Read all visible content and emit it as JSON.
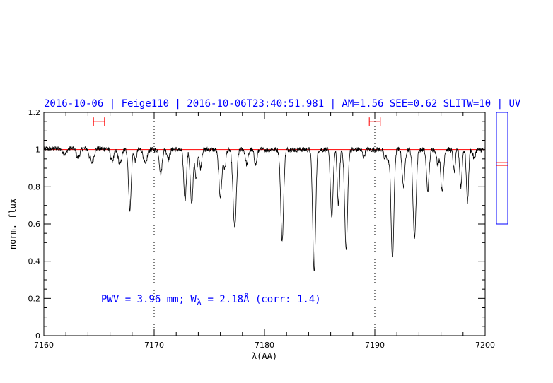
{
  "chart_data": {
    "type": "line",
    "title": "2016-10-06 | Feige110 | 2016-10-06T23:40:51.981 | AM=1.56 SEE=0.62 SLITW=10 | UV",
    "xlabel": "λ(AA)",
    "ylabel": "norm. flux",
    "xlim": [
      7160,
      7200
    ],
    "ylim": [
      0,
      1.2
    ],
    "x_ticks": [
      "7160",
      "7170",
      "7180",
      "7190",
      "7200"
    ],
    "y_ticks": [
      "0",
      "0.2",
      "0.4",
      "0.6",
      "0.8",
      "1",
      "1.2"
    ],
    "reference_line_y": 1.0,
    "vertical_markers_x": [
      7170,
      7190
    ],
    "continuum_windows": [
      [
        7164.5,
        7165.5
      ],
      [
        7189.5,
        7190.5
      ]
    ],
    "continuum_window_y": 1.15,
    "annotation": {
      "prefix": "PWV = 3.96 mm; W",
      "subscript": "λ",
      "suffix": " = 2.18Å (corr: 1.4)"
    },
    "absorption_lines": [
      {
        "x": 7161.9,
        "depth": 0.03,
        "width": 0.15
      },
      {
        "x": 7163.1,
        "depth": 0.05,
        "width": 0.15
      },
      {
        "x": 7164.2,
        "depth": 0.04,
        "width": 0.12
      },
      {
        "x": 7164.4,
        "depth": 0.06,
        "width": 0.15
      },
      {
        "x": 7166.2,
        "depth": 0.06,
        "width": 0.15
      },
      {
        "x": 7166.9,
        "depth": 0.08,
        "width": 0.15
      },
      {
        "x": 7167.8,
        "depth": 0.32,
        "width": 0.12
      },
      {
        "x": 7168.3,
        "depth": 0.06,
        "width": 0.1
      },
      {
        "x": 7169.2,
        "depth": 0.08,
        "width": 0.15
      },
      {
        "x": 7170.6,
        "depth": 0.13,
        "width": 0.12
      },
      {
        "x": 7171.3,
        "depth": 0.05,
        "width": 0.12
      },
      {
        "x": 7172.8,
        "depth": 0.27,
        "width": 0.12
      },
      {
        "x": 7173.4,
        "depth": 0.3,
        "width": 0.12
      },
      {
        "x": 7173.8,
        "depth": 0.16,
        "width": 0.1
      },
      {
        "x": 7174.2,
        "depth": 0.1,
        "width": 0.1
      },
      {
        "x": 7176.0,
        "depth": 0.25,
        "width": 0.14
      },
      {
        "x": 7176.4,
        "depth": 0.1,
        "width": 0.1
      },
      {
        "x": 7177.3,
        "depth": 0.42,
        "width": 0.15
      },
      {
        "x": 7178.4,
        "depth": 0.08,
        "width": 0.12
      },
      {
        "x": 7179.2,
        "depth": 0.08,
        "width": 0.12
      },
      {
        "x": 7181.6,
        "depth": 0.49,
        "width": 0.13
      },
      {
        "x": 7184.5,
        "depth": 0.66,
        "width": 0.13
      },
      {
        "x": 7186.1,
        "depth": 0.36,
        "width": 0.12
      },
      {
        "x": 7186.7,
        "depth": 0.3,
        "width": 0.1
      },
      {
        "x": 7187.4,
        "depth": 0.54,
        "width": 0.13
      },
      {
        "x": 7189.0,
        "depth": 0.04,
        "width": 0.1
      },
      {
        "x": 7190.9,
        "depth": 0.05,
        "width": 0.1
      },
      {
        "x": 7191.2,
        "depth": 0.06,
        "width": 0.1
      },
      {
        "x": 7191.6,
        "depth": 0.59,
        "width": 0.13
      },
      {
        "x": 7192.6,
        "depth": 0.2,
        "width": 0.12
      },
      {
        "x": 7193.6,
        "depth": 0.47,
        "width": 0.14
      },
      {
        "x": 7194.8,
        "depth": 0.22,
        "width": 0.12
      },
      {
        "x": 7195.7,
        "depth": 0.08,
        "width": 0.1
      },
      {
        "x": 7196.1,
        "depth": 0.23,
        "width": 0.12
      },
      {
        "x": 7197.2,
        "depth": 0.12,
        "width": 0.1
      },
      {
        "x": 7197.8,
        "depth": 0.2,
        "width": 0.1
      },
      {
        "x": 7198.4,
        "depth": 0.28,
        "width": 0.1
      },
      {
        "x": 7199.0,
        "depth": 0.05,
        "width": 0.1
      }
    ],
    "grid": false
  },
  "colors": {
    "spectrum": "#000000",
    "reference": "#ff0000",
    "title": "#0000ff",
    "annotation": "#0000ff",
    "side_panel": "#0000ff"
  },
  "side_panel": {
    "lines": [
      0.36,
      0.38
    ]
  }
}
